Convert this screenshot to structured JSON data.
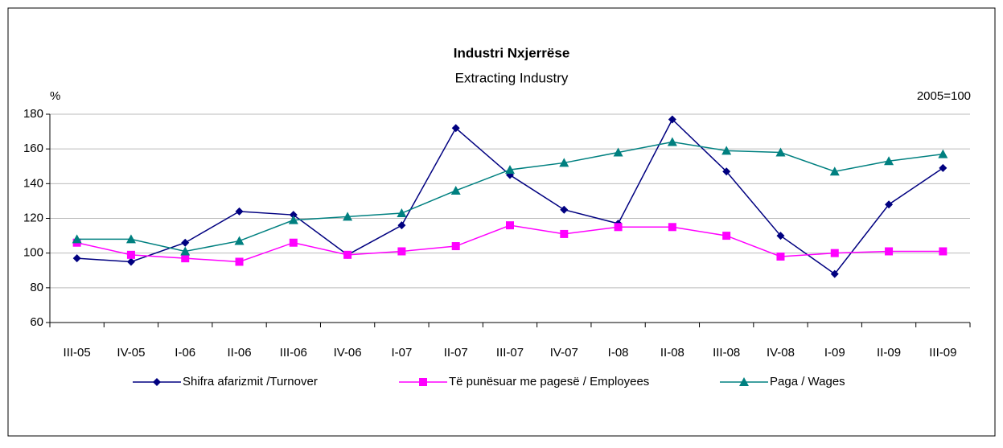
{
  "chart_data": {
    "type": "line",
    "title": "Industri Nxjerrëse",
    "subtitle": "Extracting Industry",
    "y_label": "%",
    "annotation": "2005=100",
    "categories": [
      "III-05",
      "IV-05",
      "I-06",
      "II-06",
      "III-06",
      "IV-06",
      "I-07",
      "II-07",
      "III-07",
      "IV-07",
      "I-08",
      "II-08",
      "III-08",
      "IV-08",
      "I-09",
      "II-09",
      "III-09"
    ],
    "series": [
      {
        "name": "Shifra afarizmit /Turnover",
        "color": "#000080",
        "marker": "diamond",
        "values": [
          97,
          95,
          106,
          124,
          122,
          99,
          116,
          172,
          145,
          125,
          117,
          177,
          147,
          110,
          88,
          128,
          149
        ]
      },
      {
        "name": "Të punësuar me pagesë / Employees",
        "color": "#ff00ff",
        "marker": "square",
        "values": [
          106,
          99,
          97,
          95,
          106,
          99,
          101,
          104,
          116,
          111,
          115,
          115,
          110,
          98,
          100,
          101,
          101
        ]
      },
      {
        "name": "Paga / Wages",
        "color": "#008080",
        "marker": "triangle",
        "values": [
          108,
          108,
          101,
          107,
          119,
          121,
          123,
          136,
          148,
          152,
          158,
          164,
          159,
          158,
          147,
          153,
          157
        ]
      }
    ],
    "ylim": [
      60,
      180
    ],
    "yticks": [
      60,
      80,
      100,
      120,
      140,
      160,
      180
    ],
    "grid": true,
    "legend": "bottom"
  }
}
